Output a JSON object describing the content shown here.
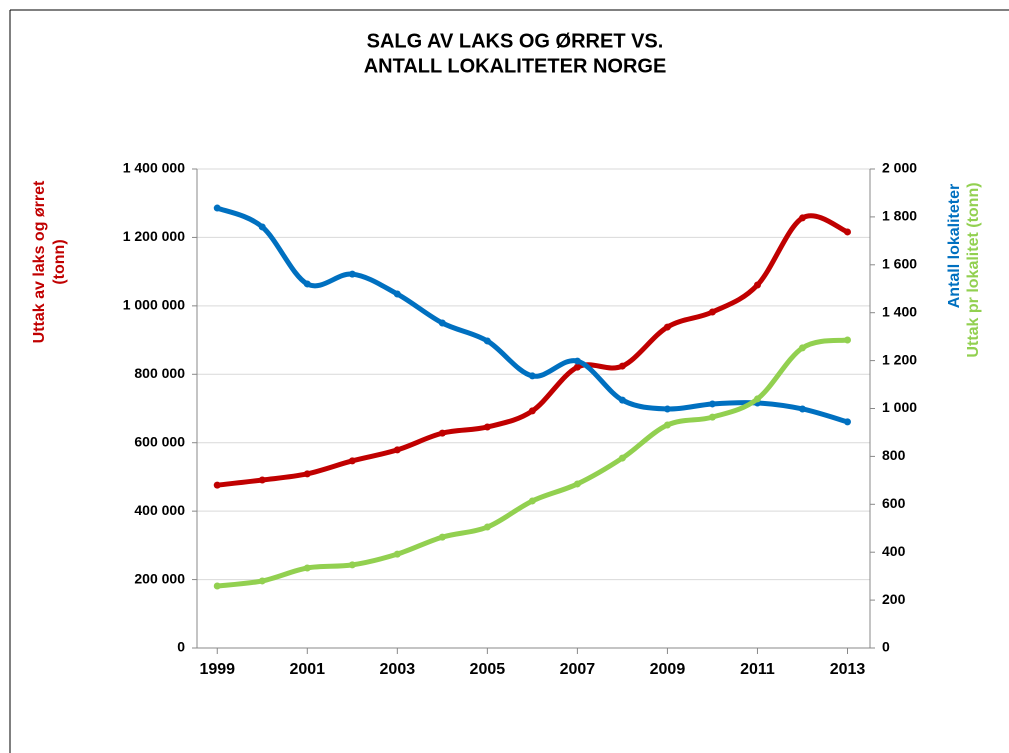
{
  "chart_data": {
    "type": "line",
    "title": [
      "SALG AV LAKS OG ØRRET  VS.",
      "ANTALL LOKALITETER NORGE"
    ],
    "y_label": [
      "Uttak av laks og ørret",
      "(tonn)"
    ],
    "y2_labels": [
      "Antall lokaliteter",
      "Uttak pr lokalitet (tonn)"
    ],
    "x": [
      1999,
      2000,
      2001,
      2002,
      2003,
      2004,
      2005,
      2006,
      2007,
      2008,
      2009,
      2010,
      2011,
      2012,
      2013
    ],
    "xlim": [
      1998.55,
      2013.5
    ],
    "xticks": [
      1999,
      2001,
      2003,
      2005,
      2007,
      2009,
      2011,
      2013
    ],
    "ylim": [
      0,
      1400000
    ],
    "yticks": [
      0,
      {
        "value": 200000,
        "label": "200 000"
      },
      {
        "value": 400000,
        "label": "400 000"
      },
      {
        "value": 600000,
        "label": "600 000"
      },
      {
        "value": 800000,
        "label": "800 000"
      },
      {
        "value": 1000000,
        "label": "1 000 000"
      },
      {
        "value": 1200000,
        "label": "1 200 000"
      },
      {
        "value": 1400000,
        "label": "1 400 000"
      }
    ],
    "y2lim": [
      0,
      2000
    ],
    "y2ticks": [
      0,
      200,
      400,
      600,
      800,
      {
        "value": 1000,
        "label": "1 000"
      },
      {
        "value": 1200,
        "label": "1 200"
      },
      {
        "value": 1400,
        "label": "1 400"
      },
      {
        "value": 1600,
        "label": "1 600"
      },
      {
        "value": 1800,
        "label": "1 800"
      },
      {
        "value": 2000,
        "label": "2 000"
      }
    ],
    "grid": true,
    "series": [
      {
        "color": "#c00000",
        "values": [
          476000,
          491000,
          509000,
          547000,
          579000,
          628000,
          646000,
          693000,
          821000,
          824000,
          938000,
          982000,
          1061000,
          1257000,
          1216000
        ]
      },
      {
        "color": "#0070c0",
        "axis": "y2",
        "values": [
          1837,
          1758,
          1520,
          1561,
          1478,
          1357,
          1282,
          1136,
          1198,
          1035,
          998,
          1019,
          1023,
          998,
          944
        ]
      },
      {
        "color": "#92d050",
        "axis": "y2",
        "values": [
          259,
          280,
          334,
          347,
          392,
          463,
          505,
          614,
          685,
          793,
          931,
          964,
          1040,
          1253,
          1286
        ]
      }
    ]
  }
}
